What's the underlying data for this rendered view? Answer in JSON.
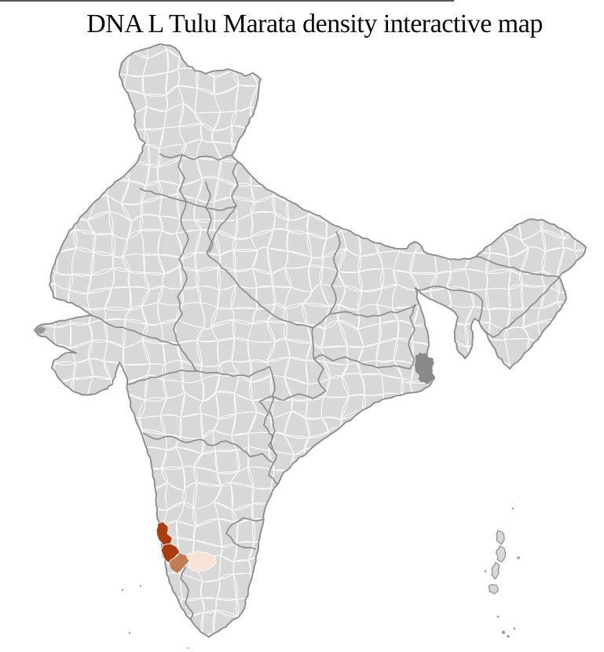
{
  "page": {
    "title": "DNA L Tulu Marata density interactive map"
  },
  "map": {
    "kind": "india-district-choropleth",
    "background": "#ffffff",
    "land_fill": "#d8d8d8",
    "district_border_color": "#ffffff",
    "state_border_color": "#8d8d8d",
    "country_outline_color": "#8d8d8d",
    "density_levels": [
      {
        "level": "high",
        "color": "#AA3C0E"
      },
      {
        "level": "medium",
        "color": "#C17B55"
      },
      {
        "level": "low",
        "color": "#F6E3D6"
      }
    ],
    "other_marked_region_color": "#8a8a8a",
    "island_fill": "#d8d8d8",
    "island_dot_color": "#9a9a9a"
  }
}
